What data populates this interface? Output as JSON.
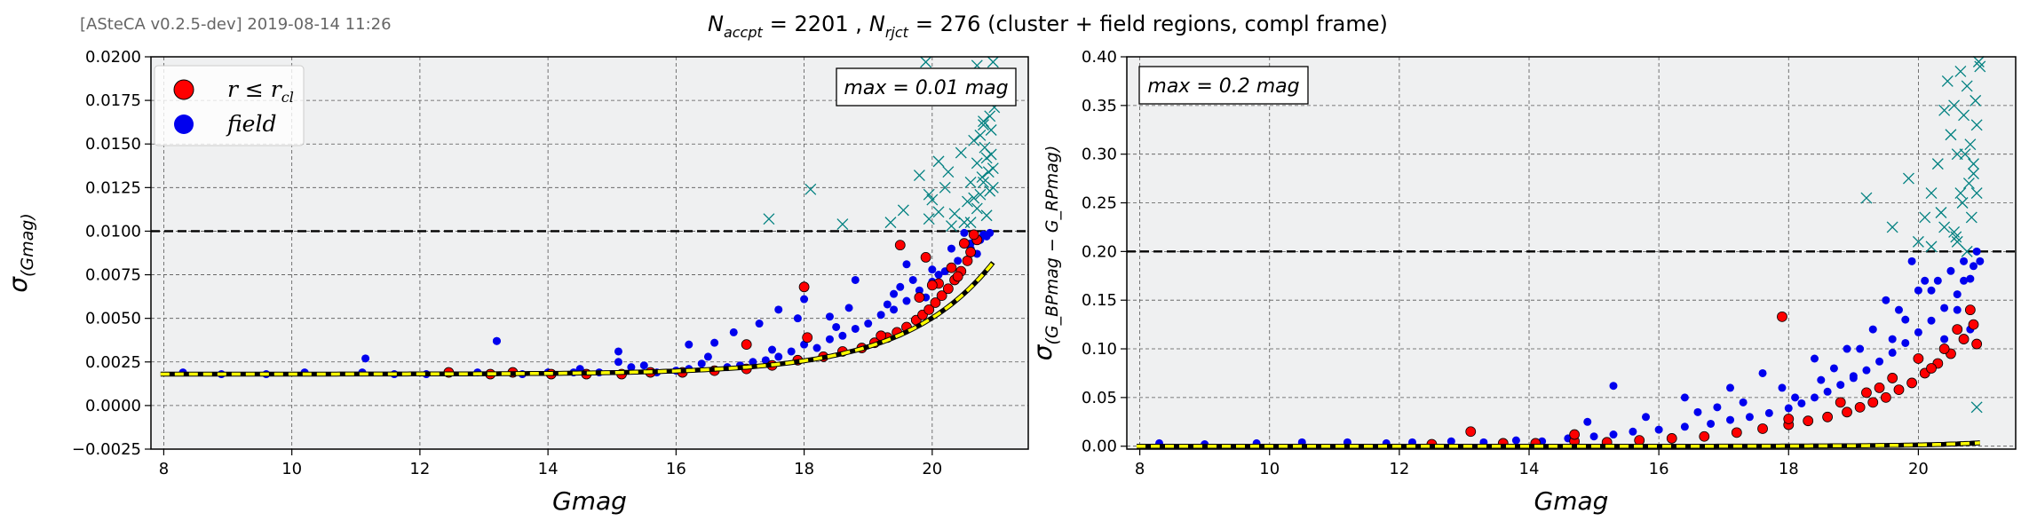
{
  "header": {
    "version": "[ASteCA v0.2.5-dev] 2019-08-14 11:26",
    "title_accepted_sym": "N",
    "title_accepted_sub": "accpt",
    "title_accepted_val": "= 2201 ,",
    "title_rejected_sym": "N",
    "title_rejected_sub": "rjct",
    "title_rejected_val": "= 276 (cluster + field regions, compl frame)"
  },
  "legend": {
    "cluster_label": "r ≤ r",
    "cluster_sub": "cl",
    "field_label": "field"
  },
  "colors": {
    "cluster": "#ff0000",
    "field": "#0000ee",
    "rejected": "#008080",
    "fit": "#ffff00",
    "axes_bg": "#eff0f1"
  },
  "chart_data": [
    {
      "type": "scatter",
      "xlabel": "Gmag",
      "ylabel": "σ",
      "ylabel_sub": "(Gmag)",
      "xlim": [
        7.8,
        21.5
      ],
      "ylim": [
        -0.0025,
        0.02
      ],
      "xticks": [
        "8",
        "10",
        "12",
        "14",
        "16",
        "18",
        "20"
      ],
      "yticks": [
        "−0.0025",
        "0.0000",
        "0.0025",
        "0.0050",
        "0.0075",
        "0.0100",
        "0.0125",
        "0.0150",
        "0.0175",
        "0.0200"
      ],
      "max_label": "max = 0.01 mag",
      "max_line": 0.01,
      "grid": true,
      "legend_position": "top-left",
      "fit": {
        "name": "",
        "a": 0.0018,
        "b": 1.8e-09,
        "c": 0.72,
        "x_start": 7.95,
        "x_end": 20.95
      },
      "series": [
        {
          "name": "r ≤ r_cl",
          "color": "#ff0000",
          "x": [
            12.45,
            13.1,
            13.45,
            14.05,
            14.6,
            15.15,
            15.6,
            16.1,
            16.6,
            17.1,
            17.5,
            17.9,
            18.3,
            18.6,
            18.9,
            19.1,
            19.3,
            19.45,
            19.6,
            19.75,
            19.85,
            19.95,
            20.05,
            20.15,
            20.25,
            20.35,
            20.45,
            20.55,
            20.6,
            20.7,
            19.8,
            20.1,
            20.4,
            19.2,
            18.0,
            18.05,
            17.1,
            20.65,
            20.3,
            19.9,
            19.5,
            20.5,
            20.0
          ],
          "y": [
            0.0019,
            0.0018,
            0.0019,
            0.0018,
            0.0018,
            0.0018,
            0.0019,
            0.0019,
            0.002,
            0.0021,
            0.0023,
            0.0026,
            0.0028,
            0.0031,
            0.0033,
            0.0036,
            0.0039,
            0.0042,
            0.0045,
            0.0049,
            0.0052,
            0.0055,
            0.0059,
            0.0063,
            0.0067,
            0.0072,
            0.0077,
            0.0083,
            0.0088,
            0.0095,
            0.0062,
            0.007,
            0.0074,
            0.004,
            0.0068,
            0.0039,
            0.0035,
            0.0098,
            0.0079,
            0.0085,
            0.0092,
            0.0093,
            0.0069
          ]
        },
        {
          "name": "field",
          "color": "#0000ee",
          "x": [
            8.3,
            8.9,
            9.6,
            10.2,
            11.1,
            11.6,
            12.1,
            12.9,
            13.2,
            13.6,
            14.0,
            14.4,
            14.8,
            15.1,
            15.3,
            15.7,
            16.0,
            16.2,
            16.4,
            16.8,
            17.0,
            17.2,
            17.4,
            17.6,
            17.8,
            18.0,
            18.2,
            18.4,
            18.6,
            18.8,
            19.0,
            19.2,
            19.4,
            19.6,
            19.8,
            20.0,
            20.2,
            20.4,
            20.6,
            20.8,
            16.2,
            16.9,
            17.3,
            17.6,
            18.0,
            18.4,
            18.8,
            19.4,
            19.6,
            20.0,
            20.3,
            20.6,
            20.7,
            13.2,
            11.15,
            15.1,
            16.6,
            17.9,
            18.7,
            19.5,
            20.1,
            20.5,
            20.85,
            19.9,
            19.3,
            18.5,
            17.5,
            16.5,
            15.5,
            14.5,
            20.75,
            20.9,
            19.7
          ],
          "y": [
            0.0019,
            0.0018,
            0.0018,
            0.0019,
            0.0019,
            0.0018,
            0.0018,
            0.0019,
            0.0037,
            0.0018,
            0.0019,
            0.0019,
            0.0019,
            0.0025,
            0.0022,
            0.0019,
            0.002,
            0.0021,
            0.0024,
            0.0022,
            0.0023,
            0.0025,
            0.0026,
            0.0028,
            0.0031,
            0.0035,
            0.0033,
            0.0038,
            0.004,
            0.0044,
            0.0047,
            0.0052,
            0.0055,
            0.006,
            0.0066,
            0.0071,
            0.0077,
            0.0083,
            0.009,
            0.0098,
            0.0035,
            0.0042,
            0.0047,
            0.0055,
            0.0061,
            0.0051,
            0.0072,
            0.0064,
            0.0081,
            0.0078,
            0.009,
            0.0093,
            0.0087,
            0.0037,
            0.0027,
            0.0031,
            0.0036,
            0.005,
            0.0056,
            0.0068,
            0.0075,
            0.0099,
            0.0097,
            0.0062,
            0.0058,
            0.0045,
            0.0032,
            0.0028,
            0.0023,
            0.0021,
            0.0095,
            0.0099,
            0.0072
          ]
        },
        {
          "name": "",
          "color": "#008080",
          "marker": "x",
          "x": [
            17.45,
            18.1,
            18.6,
            19.35,
            19.55,
            19.8,
            19.9,
            20.0,
            20.1,
            20.2,
            20.25,
            20.35,
            20.45,
            20.55,
            20.6,
            20.65,
            20.7,
            20.75,
            20.8,
            20.82,
            20.85,
            20.88,
            20.9,
            20.92,
            20.95,
            20.97,
            20.7,
            20.8,
            20.85,
            20.9,
            20.6,
            20.75,
            20.88,
            20.95,
            19.95,
            20.3,
            20.5,
            20.65,
            20.78,
            20.92,
            19.95,
            20.1,
            20.85,
            20.9,
            20.95,
            20.7,
            20.8,
            20.88
          ],
          "y": [
            0.0107,
            0.0124,
            0.0104,
            0.0105,
            0.0112,
            0.0132,
            0.0197,
            0.0118,
            0.014,
            0.0125,
            0.0134,
            0.011,
            0.0145,
            0.0117,
            0.0128,
            0.0152,
            0.0139,
            0.0121,
            0.0163,
            0.0148,
            0.0177,
            0.0134,
            0.0188,
            0.0158,
            0.0197,
            0.0171,
            0.0113,
            0.0128,
            0.0142,
            0.0166,
            0.0105,
            0.0155,
            0.0182,
            0.0125,
            0.0121,
            0.0103,
            0.0105,
            0.0119,
            0.0131,
            0.0144,
            0.0107,
            0.0111,
            0.0109,
            0.0123,
            0.0136,
            0.0195,
            0.0161,
            0.0175
          ]
        }
      ]
    },
    {
      "type": "scatter",
      "xlabel": "Gmag",
      "ylabel": "σ",
      "ylabel_sub": "(G_BPmag − G_RPmag)",
      "xlim": [
        7.8,
        21.5
      ],
      "ylim": [
        -0.003,
        0.4
      ],
      "xticks": [
        "8",
        "10",
        "12",
        "14",
        "16",
        "18",
        "20"
      ],
      "yticks": [
        "0.00",
        "0.05",
        "0.10",
        "0.15",
        "0.20",
        "0.25",
        "0.30",
        "0.35",
        "0.40"
      ],
      "max_label": "max = 0.2 mag",
      "max_line": 0.2,
      "grid": true,
      "fit": {
        "name": "",
        "a": 0.0,
        "b": 1.8e-12,
        "c": 1.02,
        "x_start": 7.95,
        "x_end": 20.95
      },
      "series": [
        {
          "name": "r ≤ r_cl",
          "color": "#ff0000",
          "x": [
            12.5,
            13.1,
            13.6,
            14.1,
            14.7,
            15.2,
            15.7,
            16.2,
            16.7,
            17.2,
            17.6,
            18.0,
            18.3,
            18.6,
            18.9,
            19.1,
            19.3,
            19.5,
            19.7,
            19.9,
            20.1,
            20.3,
            20.5,
            20.7,
            20.85,
            17.9,
            19.2,
            19.6,
            20.0,
            20.4,
            20.6,
            20.8,
            18.8,
            19.4,
            20.2,
            20.9,
            14.7,
            18.0
          ],
          "y": [
            0.002,
            0.015,
            0.003,
            0.003,
            0.005,
            0.004,
            0.006,
            0.008,
            0.01,
            0.014,
            0.018,
            0.022,
            0.026,
            0.03,
            0.035,
            0.04,
            0.045,
            0.05,
            0.058,
            0.065,
            0.075,
            0.085,
            0.095,
            0.11,
            0.125,
            0.133,
            0.055,
            0.07,
            0.09,
            0.1,
            0.12,
            0.14,
            0.045,
            0.06,
            0.08,
            0.105,
            0.012,
            0.028
          ]
        },
        {
          "name": "field",
          "color": "#0000ee",
          "x": [
            8.3,
            9.0,
            9.8,
            10.5,
            11.2,
            11.8,
            12.2,
            12.8,
            13.3,
            13.8,
            14.2,
            14.6,
            15.0,
            15.3,
            15.6,
            16.0,
            16.4,
            16.8,
            17.1,
            17.4,
            17.7,
            18.0,
            18.2,
            18.4,
            18.6,
            18.8,
            19.0,
            19.2,
            19.4,
            19.6,
            19.8,
            20.0,
            20.2,
            20.4,
            20.6,
            20.8,
            15.3,
            16.4,
            17.1,
            17.6,
            18.4,
            18.9,
            19.3,
            19.7,
            20.0,
            20.3,
            20.5,
            20.7,
            20.9,
            19.5,
            19.9,
            20.1,
            20.6,
            20.8,
            16.9,
            17.9,
            18.7,
            19.1,
            19.8,
            20.4,
            20.7,
            20.95,
            14.9,
            15.8,
            16.6,
            17.3,
            18.1,
            18.5,
            19.0,
            19.6,
            20.2,
            20.85
          ],
          "y": [
            0.003,
            0.002,
            0.003,
            0.004,
            0.004,
            0.003,
            0.004,
            0.005,
            0.004,
            0.006,
            0.005,
            0.008,
            0.01,
            0.012,
            0.015,
            0.017,
            0.02,
            0.023,
            0.027,
            0.03,
            0.034,
            0.039,
            0.044,
            0.05,
            0.056,
            0.063,
            0.07,
            0.078,
            0.087,
            0.096,
            0.106,
            0.117,
            0.129,
            0.142,
            0.156,
            0.172,
            0.062,
            0.05,
            0.06,
            0.075,
            0.09,
            0.1,
            0.12,
            0.14,
            0.16,
            0.17,
            0.18,
            0.19,
            0.2,
            0.15,
            0.19,
            0.17,
            0.14,
            0.12,
            0.04,
            0.06,
            0.08,
            0.1,
            0.13,
            0.11,
            0.17,
            0.19,
            0.025,
            0.03,
            0.035,
            0.045,
            0.05,
            0.068,
            0.072,
            0.11,
            0.16,
            0.185
          ]
        },
        {
          "name": "",
          "color": "#008080",
          "marker": "x",
          "x": [
            19.2,
            19.6,
            19.85,
            20.0,
            20.1,
            20.2,
            20.3,
            20.4,
            20.5,
            20.55,
            20.6,
            20.65,
            20.7,
            20.75,
            20.8,
            20.85,
            20.9,
            20.95,
            20.2,
            20.35,
            20.45,
            20.58,
            20.68,
            20.78,
            20.88,
            20.93,
            20.55,
            20.72,
            20.82,
            20.9,
            20.4,
            20.65,
            20.85,
            20.75,
            20.9,
            20.6
          ],
          "y": [
            0.255,
            0.225,
            0.275,
            0.21,
            0.235,
            0.26,
            0.29,
            0.225,
            0.32,
            0.35,
            0.3,
            0.26,
            0.34,
            0.37,
            0.31,
            0.28,
            0.33,
            0.39,
            0.205,
            0.24,
            0.375,
            0.215,
            0.25,
            0.27,
            0.355,
            0.395,
            0.22,
            0.3,
            0.235,
            0.26,
            0.345,
            0.385,
            0.29,
            0.2,
            0.04,
            0.21
          ]
        }
      ]
    }
  ]
}
